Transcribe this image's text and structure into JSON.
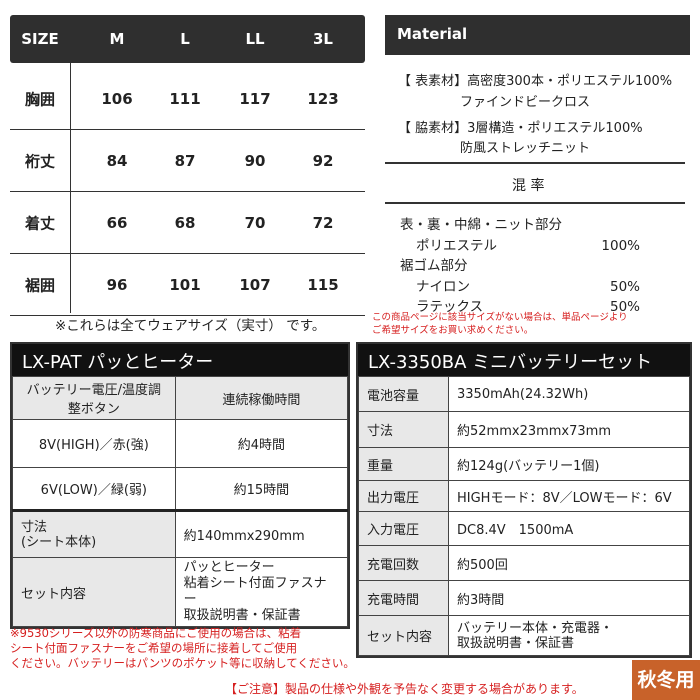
{
  "size_table": {
    "headers": [
      "SIZE",
      "M",
      "L",
      "LL",
      "3L"
    ],
    "rows": [
      {
        "label": "胸囲",
        "values": [
          "106",
          "111",
          "117",
          "123"
        ]
      },
      {
        "label": "裄丈",
        "values": [
          "84",
          "87",
          "90",
          "92"
        ]
      },
      {
        "label": "着丈",
        "values": [
          "66",
          "68",
          "70",
          "72"
        ]
      },
      {
        "label": "裾囲",
        "values": [
          "96",
          "101",
          "107",
          "115"
        ]
      }
    ],
    "note": "※これらは全てウェアサイズ（実寸） です。"
  },
  "material": {
    "title": "Material",
    "lines": [
      "【 表素材】高密度300本・ポリエステル100%",
      "ファインドビークロス",
      "【 脇素材】3層構造・ポリエステル100%",
      "防風ストレッチニット"
    ],
    "blend_title": "混 率",
    "blend": [
      {
        "label": "表・裏・中綿・ニット部分",
        "value": ""
      },
      {
        "label": "ポリエステル",
        "value": "100%"
      },
      {
        "label": "裾ゴム部分",
        "value": ""
      },
      {
        "label": "ナイロン",
        "value": "50%"
      },
      {
        "label": "ラテックス",
        "value": "50%"
      }
    ],
    "red_note": [
      "この商品ページに該当サイズがない場合は、単品ページより",
      "ご希望サイズをお買い求めください。"
    ]
  },
  "heater": {
    "title": "LX-PAT パッとヒーター",
    "col1": "バッテリー電圧/温度調整ボタン",
    "col2": "連続稼働時間",
    "modes": [
      {
        "v": "8V(HIGH)／赤(強)",
        "t": "約4時間"
      },
      {
        "v": "6V(LOW)／緑(弱)",
        "t": "約15時間"
      }
    ],
    "size_label": [
      "寸法",
      "(シート本体)"
    ],
    "size_value": "約140mmx290mm",
    "set_label": "セット内容",
    "set_items": [
      "パッとヒーター",
      "粘着シート付面ファスナー",
      "取扱説明書・保証書"
    ],
    "red_note": [
      "※9530シリーズ以外の防寒商品にご使用の場合は、粘着",
      "シート付面ファスナーをご希望の場所に接着してご使用",
      "ください。バッテリーはパンツのポケット等に収納してください。"
    ]
  },
  "battery": {
    "title": "LX-3350BA ミニバッテリーセット",
    "rows": [
      {
        "k": "電池容量",
        "v": "3350mAh(24.32Wh)"
      },
      {
        "k": "寸法",
        "v": "約52mmx23mmx73mm"
      },
      {
        "k": "重量",
        "v": "約124g(バッテリー1個)"
      },
      {
        "k": "出力電圧",
        "v": "HIGHモード：8V／LOWモード：6V"
      },
      {
        "k": "入力電圧",
        "v": "DC8.4V　1500mA"
      },
      {
        "k": "充電回数",
        "v": "約500回"
      },
      {
        "k": "充電時間",
        "v": "約3時間"
      }
    ],
    "set_label": "セット内容",
    "set_items": [
      "バッテリー本体・充電器・",
      "取扱説明書・保証書"
    ]
  },
  "footer": {
    "notice": "【ご注意】製品の仕様や外観を予告なく変更する場合があります。",
    "badge": "秋冬用",
    "badge_color": "#c8622a"
  }
}
